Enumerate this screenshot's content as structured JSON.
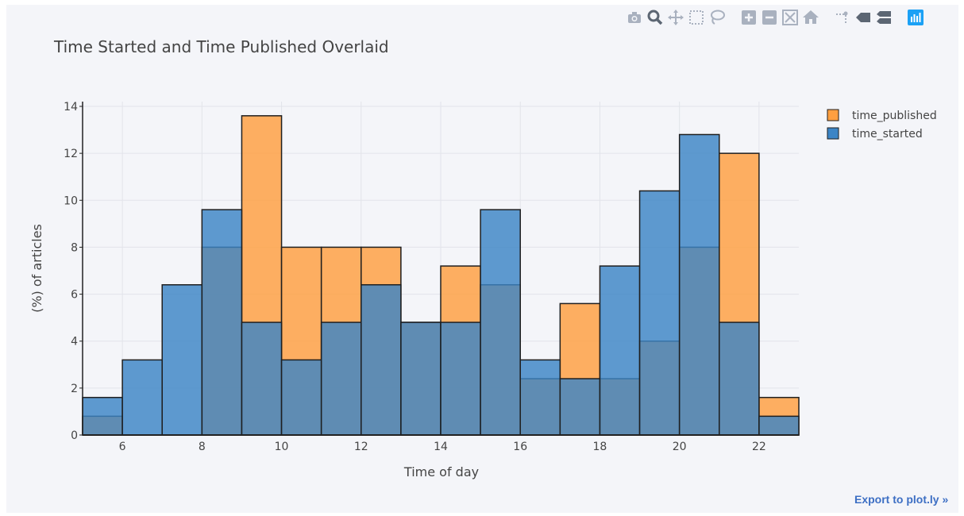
{
  "toolbar": {
    "icons": [
      "camera-icon",
      "zoom-icon",
      "pan-icon",
      "box-select-icon",
      "lasso-select-icon",
      "zoom-in-icon",
      "zoom-out-icon",
      "autoscale-icon",
      "reset-axes-icon",
      "spike-lines-icon",
      "hover-closest-icon",
      "hover-compare-icon",
      "plotly-logo-icon"
    ],
    "colors": {
      "icon": "#a9b1bf",
      "active": "#5c6673",
      "logo": "#1ca1f5"
    }
  },
  "export_label": "Export to plot.ly »",
  "chart_data": {
    "type": "bar",
    "title": "Time Started and Time Published Overlaid",
    "xlabel": "Time of day",
    "ylabel": "(%) of articles",
    "xlim": [
      5,
      23
    ],
    "ylim": [
      0,
      14
    ],
    "x_ticks": [
      6,
      8,
      10,
      12,
      14,
      16,
      18,
      20,
      22
    ],
    "y_ticks": [
      0,
      2,
      4,
      6,
      8,
      10,
      12,
      14
    ],
    "bin_width": 1,
    "bin_starts": [
      5,
      6,
      7,
      8,
      9,
      10,
      11,
      12,
      13,
      14,
      15,
      16,
      17,
      18,
      19,
      20,
      21,
      22
    ],
    "barmode": "overlay",
    "grid": true,
    "legend_position": "top-right",
    "series": [
      {
        "name": "time_published",
        "color": "#ff9f40",
        "values": [
          0.8,
          0,
          0,
          8.0,
          13.6,
          8.0,
          8.0,
          8.0,
          4.8,
          7.2,
          6.4,
          2.4,
          5.6,
          2.4,
          4.0,
          8.0,
          12.0,
          1.6
        ]
      },
      {
        "name": "time_started",
        "color": "#3c85c6",
        "values": [
          1.6,
          3.2,
          6.4,
          9.6,
          4.8,
          3.2,
          4.8,
          6.4,
          4.8,
          4.8,
          9.6,
          3.2,
          2.4,
          7.2,
          10.4,
          12.8,
          4.8,
          0.8
        ]
      }
    ]
  }
}
